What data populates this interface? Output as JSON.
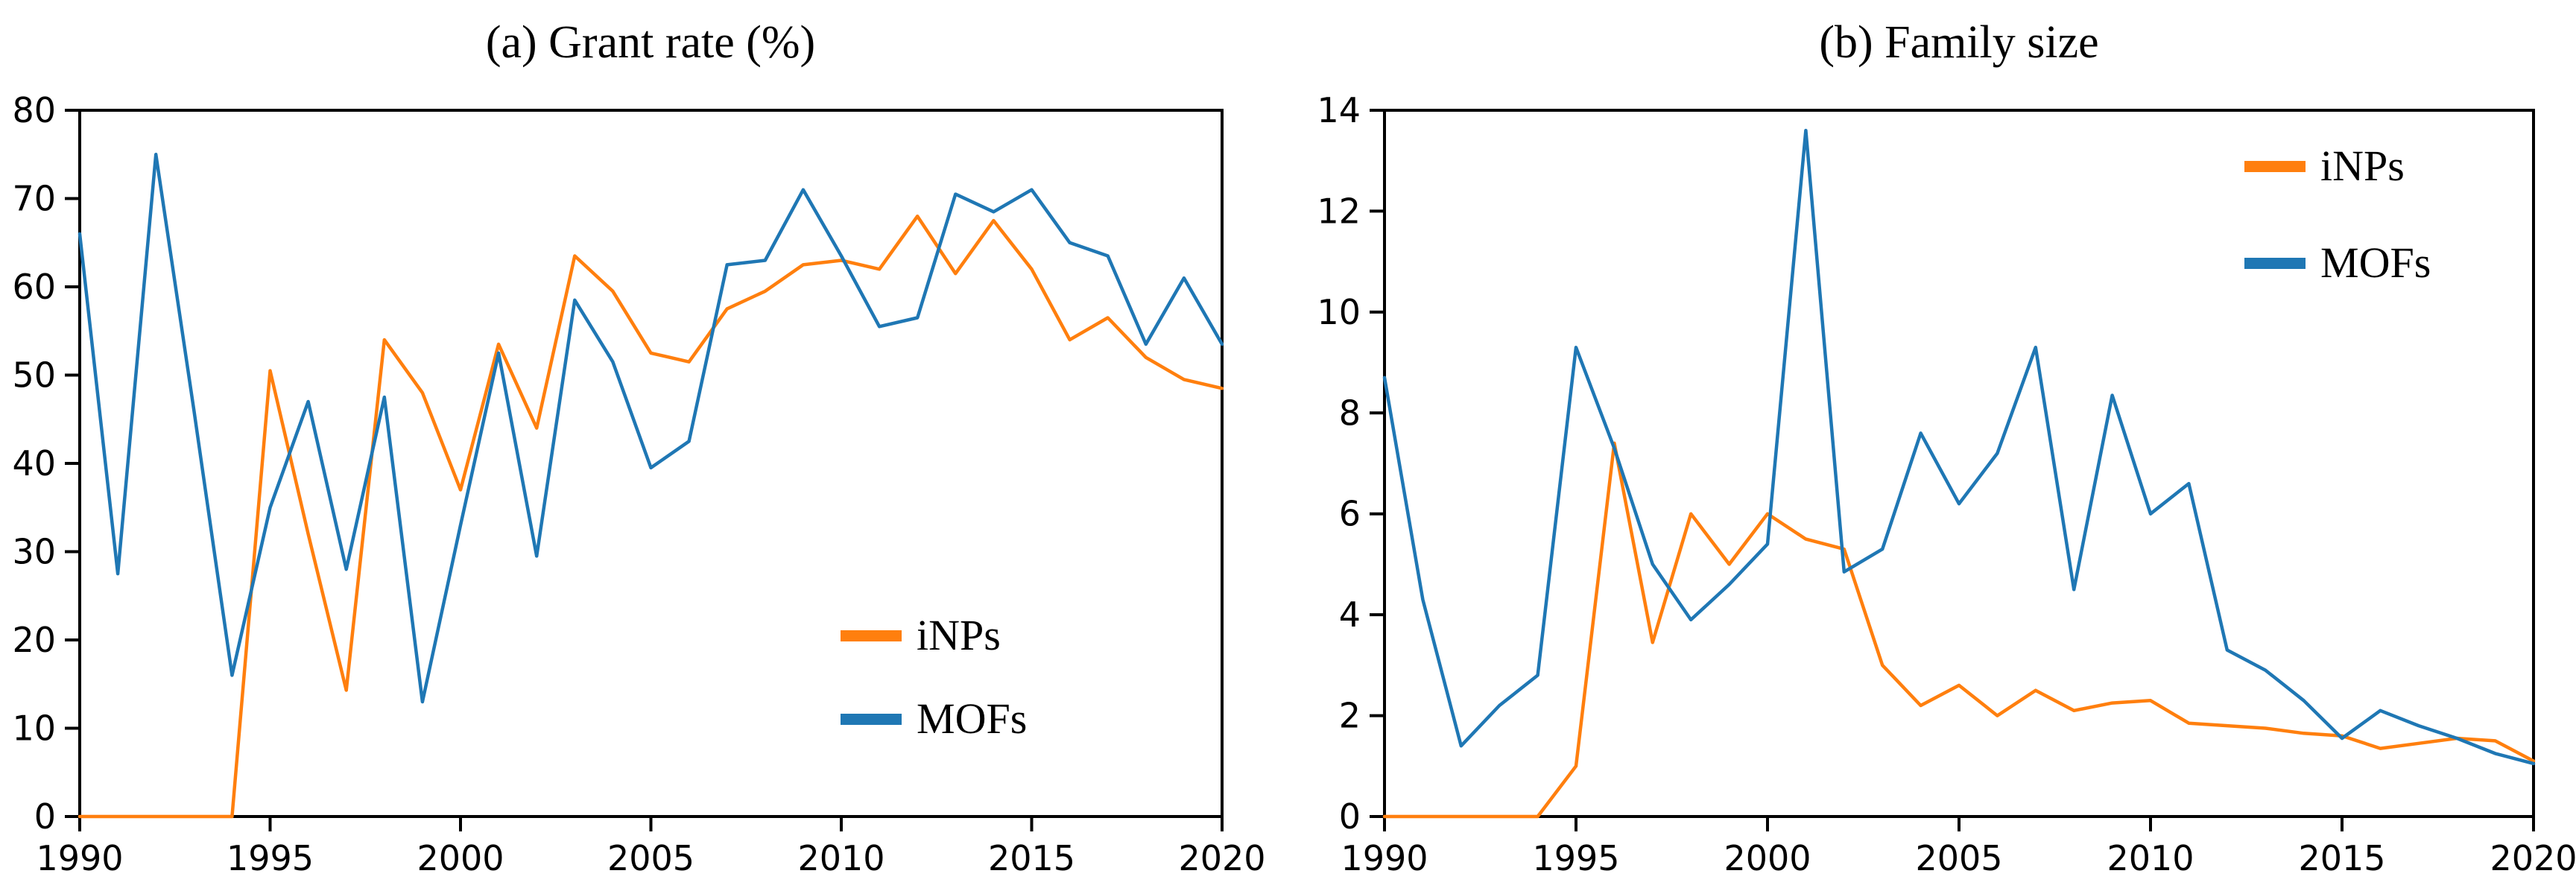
{
  "figure": {
    "background": "#ffffff",
    "spine_color": "#000000",
    "tick_color": "#000000",
    "text_color": "#000000",
    "series_colors": {
      "iNPs": "#ff7f0e",
      "MOFs": "#1f77b4"
    }
  },
  "chart_data": [
    {
      "type": "line",
      "title": "(a) Grant rate (%)",
      "xlabel": "",
      "ylabel": "",
      "xlim": [
        1990,
        2020
      ],
      "ylim": [
        0,
        80
      ],
      "grid": false,
      "legend_position": "lower right",
      "xticks": [
        1990,
        1995,
        2000,
        2005,
        2010,
        2015,
        2020
      ],
      "xtick_labels": [
        "1990",
        "1995",
        "2000",
        "2005",
        "2010",
        "2015",
        "2020"
      ],
      "yticks": [
        0,
        10,
        20,
        30,
        40,
        50,
        60,
        70,
        80
      ],
      "ytick_labels": [
        "0",
        "10",
        "20",
        "30",
        "40",
        "50",
        "60",
        "70",
        "80"
      ],
      "x": [
        1990,
        1991,
        1992,
        1993,
        1994,
        1995,
        1996,
        1997,
        1998,
        1999,
        2000,
        2001,
        2002,
        2003,
        2004,
        2005,
        2006,
        2007,
        2008,
        2009,
        2010,
        2011,
        2012,
        2013,
        2014,
        2015,
        2016,
        2017,
        2018,
        2019,
        2020
      ],
      "series": [
        {
          "name": "iNPs",
          "color": "#ff7f0e",
          "values": [
            0,
            0,
            0,
            0,
            0,
            50.5,
            32,
            14.3,
            54,
            48,
            37,
            53.5,
            44,
            63.5,
            59.5,
            52.5,
            51.5,
            57.5,
            59.5,
            62.5,
            63,
            62,
            68,
            61.5,
            67.5,
            62,
            54,
            56.5,
            52,
            49.5,
            48.5
          ]
        },
        {
          "name": "MOFs",
          "color": "#1f77b4",
          "values": [
            66,
            27.5,
            75,
            46,
            16,
            35,
            47,
            28,
            47.5,
            13,
            33,
            52.5,
            29.5,
            58.5,
            51.5,
            39.5,
            42.5,
            62.5,
            63,
            71,
            63.5,
            55.5,
            56.5,
            70.5,
            68.5,
            71,
            65,
            63.5,
            53.5,
            61,
            53.5
          ]
        }
      ]
    },
    {
      "type": "line",
      "title": "(b) Family size",
      "xlabel": "",
      "ylabel": "",
      "xlim": [
        1990,
        2020
      ],
      "ylim": [
        0,
        14
      ],
      "grid": false,
      "legend_position": "upper right",
      "xticks": [
        1990,
        1995,
        2000,
        2005,
        2010,
        2015,
        2020
      ],
      "xtick_labels": [
        "1990",
        "1995",
        "2000",
        "2005",
        "2010",
        "2015",
        "2020"
      ],
      "yticks": [
        0,
        2,
        4,
        6,
        8,
        10,
        12,
        14
      ],
      "ytick_labels": [
        "0",
        "2",
        "4",
        "6",
        "8",
        "10",
        "12",
        "14"
      ],
      "x": [
        1990,
        1991,
        1992,
        1993,
        1994,
        1995,
        1996,
        1997,
        1998,
        1999,
        2000,
        2001,
        2002,
        2003,
        2004,
        2005,
        2006,
        2007,
        2008,
        2009,
        2010,
        2011,
        2012,
        2013,
        2014,
        2015,
        2016,
        2017,
        2018,
        2019,
        2020
      ],
      "series": [
        {
          "name": "iNPs",
          "color": "#ff7f0e",
          "values": [
            0,
            0,
            0,
            0,
            0,
            1.0,
            7.4,
            3.45,
            6.0,
            5.0,
            6.0,
            5.5,
            5.3,
            3.0,
            2.2,
            2.6,
            2.0,
            2.5,
            2.1,
            2.25,
            2.3,
            1.85,
            1.8,
            1.75,
            1.65,
            1.6,
            1.35,
            1.45,
            1.55,
            1.5,
            1.1
          ]
        },
        {
          "name": "MOFs",
          "color": "#1f77b4",
          "values": [
            8.7,
            4.3,
            1.4,
            2.2,
            2.8,
            9.3,
            7.3,
            5.0,
            3.9,
            4.6,
            5.4,
            13.6,
            4.85,
            5.3,
            7.6,
            6.2,
            7.2,
            9.3,
            4.5,
            8.35,
            6.0,
            6.6,
            3.3,
            2.9,
            2.3,
            1.55,
            2.1,
            1.8,
            1.55,
            1.25,
            1.05
          ]
        }
      ]
    }
  ]
}
